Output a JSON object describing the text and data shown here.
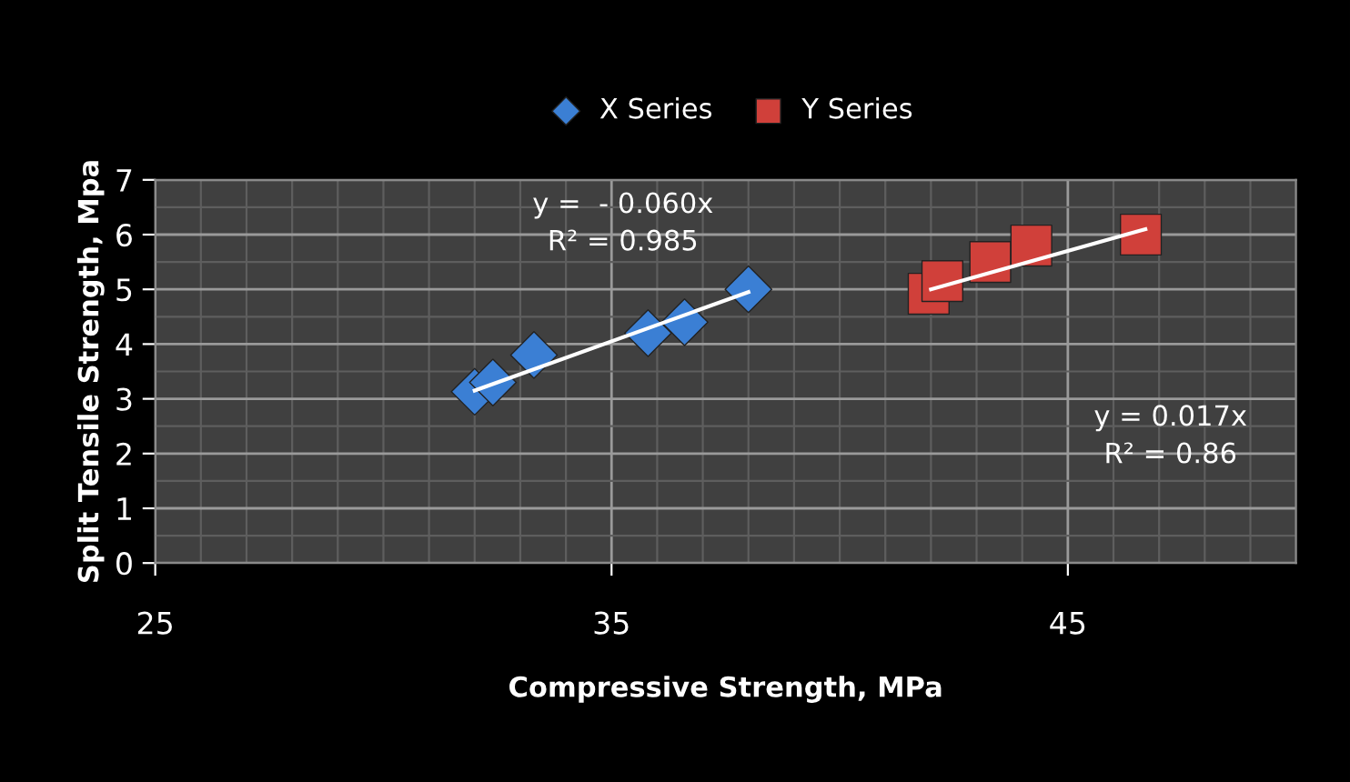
{
  "chart_data": {
    "type": "scatter",
    "xlabel": "Compressive Strength, MPa",
    "ylabel": "Split Tensile Strength, Mpa",
    "xlim": [
      25,
      50
    ],
    "xticks": [
      25,
      35,
      45
    ],
    "ylim": [
      0,
      7
    ],
    "yticks": [
      0,
      1,
      2,
      3,
      4,
      5,
      6,
      7
    ],
    "grid": true,
    "legend": "top",
    "series": [
      {
        "name": "X Series",
        "color": "#3b7fd4",
        "marker": "diamond",
        "x": [
          32.0,
          32.4,
          33.3,
          35.8,
          36.6,
          38.0
        ],
        "values": [
          3.13,
          3.3,
          3.8,
          4.2,
          4.4,
          5.0
        ]
      },
      {
        "name": "Y Series",
        "color": "#d0403a",
        "marker": "square",
        "x": [
          41.95,
          42.25,
          43.3,
          44.2,
          46.6
        ],
        "values": [
          4.92,
          5.15,
          5.5,
          5.8,
          6.0
        ]
      },
      {
        "type": "line",
        "color": "#ffffff",
        "marker": "none",
        "x": [
          32.0,
          38.0
        ],
        "values": [
          3.15,
          4.95
        ]
      },
      {
        "type": "line",
        "color": "#ffffff",
        "marker": "none",
        "x": [
          42.0,
          46.7
        ],
        "values": [
          5.0,
          6.1
        ]
      }
    ],
    "annotations": [
      "y =  - 0.060x\nR² = 0.985",
      "y = 0.017x\nR² = 0.86"
    ]
  }
}
